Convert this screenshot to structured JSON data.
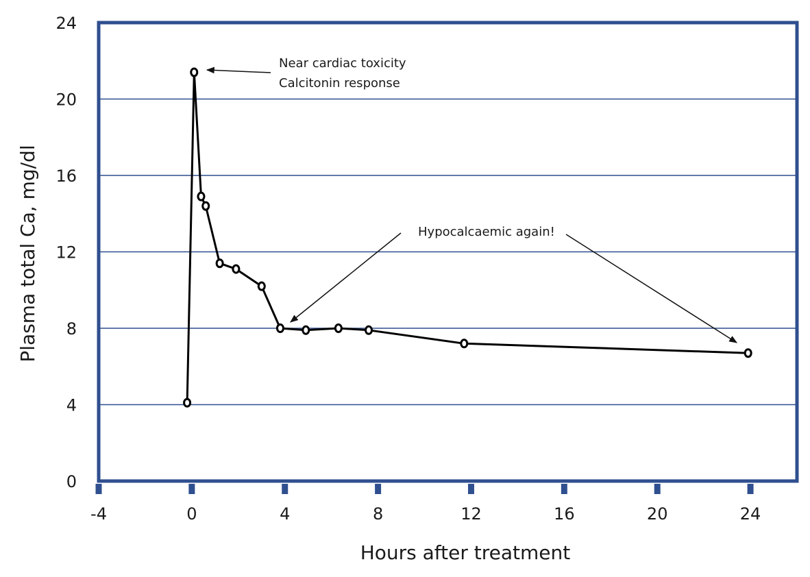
{
  "chart_data": {
    "type": "line",
    "title": "",
    "xlabel": "Hours after treatment",
    "ylabel": "Plasma total Ca, mg/dl",
    "xlim": [
      -4,
      26
    ],
    "ylim": [
      0,
      24
    ],
    "x_ticks": [
      -4,
      0,
      4,
      8,
      12,
      16,
      20,
      24
    ],
    "y_ticks": [
      0,
      4,
      8,
      12,
      16,
      20,
      24
    ],
    "grid": "horizontal",
    "series": [
      {
        "name": "Plasma total Ca",
        "x": [
          -0.2,
          0.1,
          0.4,
          0.6,
          1.2,
          1.9,
          3.0,
          3.8,
          4.9,
          6.3,
          7.6,
          11.7,
          23.9
        ],
        "y": [
          4.1,
          21.4,
          14.9,
          14.4,
          11.4,
          11.1,
          10.2,
          8.0,
          7.9,
          8.0,
          7.9,
          7.2,
          6.7
        ]
      }
    ],
    "annotations": [
      {
        "lines": [
          "Near cardiac toxicity",
          "Calcitonin response"
        ],
        "points_to": {
          "x": 0.1,
          "y": 21.4
        }
      },
      {
        "lines": [
          "Hypocalcaemic again!"
        ],
        "points_to_1": {
          "x": 4.0,
          "y": 8.4
        },
        "points_to_2": {
          "x": 23.3,
          "y": 7.2
        }
      }
    ],
    "colors": {
      "frame": "#2f4f8f",
      "grid": "#2f4f8f",
      "line": "#000000"
    }
  }
}
